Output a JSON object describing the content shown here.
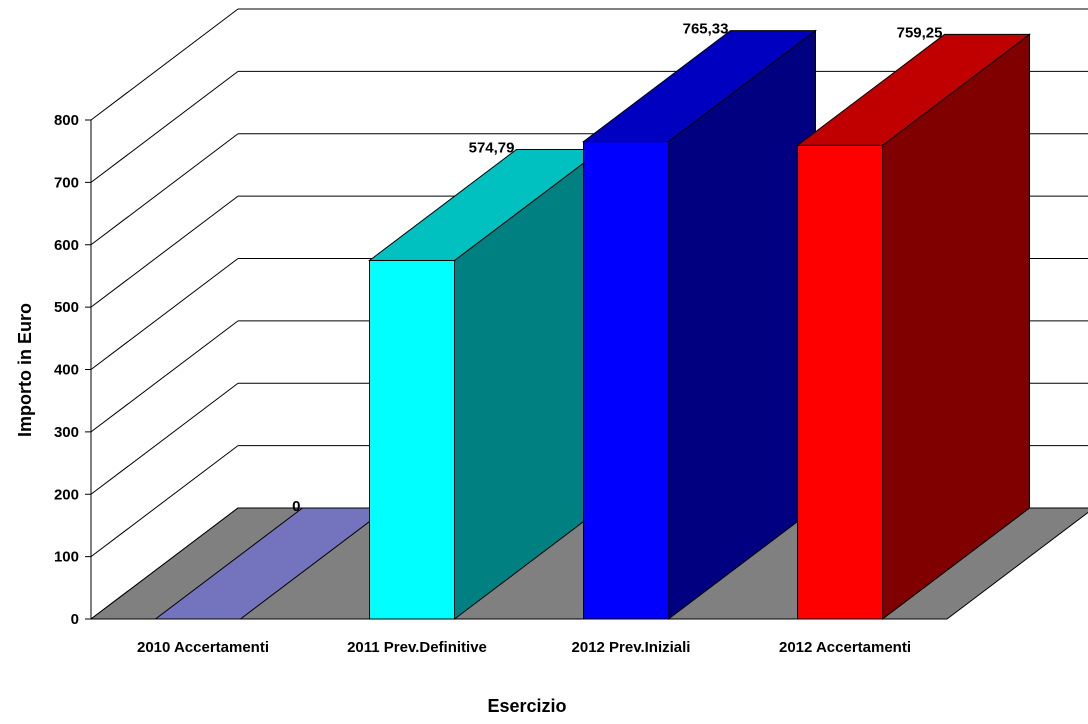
{
  "chart_data": {
    "type": "bar",
    "style": "3d-column",
    "categories": [
      "2010 Accertamenti",
      "2011 Prev.Definitive",
      "2012 Prev.Iniziali",
      "2012 Accertamenti"
    ],
    "values": [
      0,
      574.79,
      765.33,
      759.25
    ],
    "data_labels": [
      "0",
      "574,79",
      "765,33",
      "759,25"
    ],
    "colors": [
      {
        "front": "#7B7BC6",
        "side": "#3F3F8F",
        "top": "#7373BE"
      },
      {
        "front": "#00FFFF",
        "side": "#008080",
        "top": "#00C0C0"
      },
      {
        "front": "#0000FF",
        "side": "#000080",
        "top": "#0000C0"
      },
      {
        "front": "#FF0000",
        "side": "#800000",
        "top": "#C00000"
      }
    ],
    "floor_color": "#808080",
    "title": "",
    "xlabel": "Esercizio",
    "ylabel": "Importo in Euro",
    "ylim": [
      0,
      800
    ],
    "yticks": [
      0,
      100,
      200,
      300,
      400,
      500,
      600,
      700,
      800
    ],
    "grid": true,
    "legend": false
  }
}
